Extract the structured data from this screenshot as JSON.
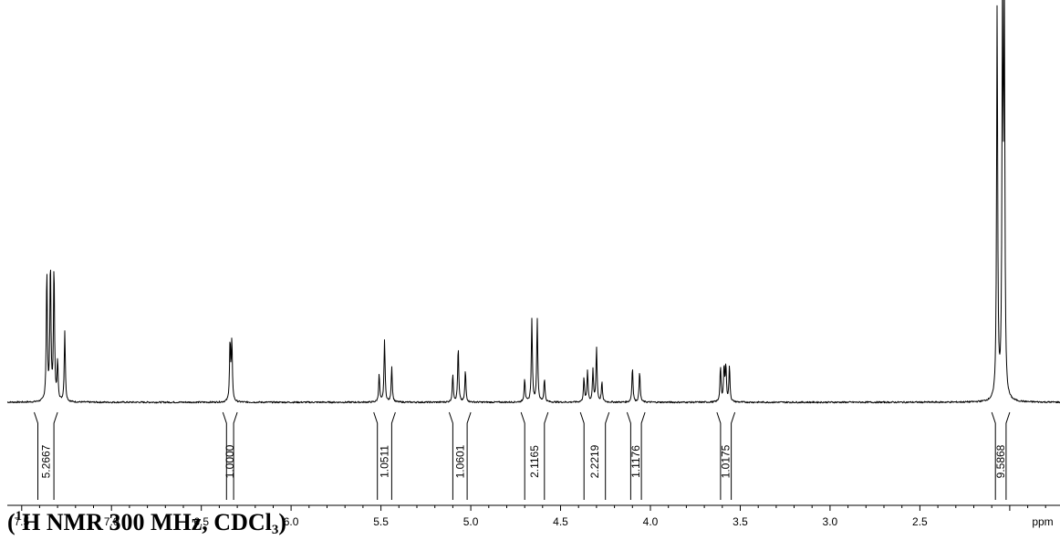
{
  "chart_data": {
    "type": "line",
    "title": "",
    "xlabel": "ppm",
    "ylabel": "",
    "x_reversed": true,
    "xlim": [
      7.58,
      1.72
    ],
    "x_ticks": [
      "7.5",
      "7.0",
      "6.5",
      "6.0",
      "5.5",
      "5.0",
      "4.5",
      "4.0",
      "3.5",
      "3.0",
      "2.5"
    ],
    "grid": false,
    "legend": "none",
    "series": [
      {
        "peaks": [
          {
            "ppm": 7.36,
            "height": 0.33
          },
          {
            "ppm": 7.34,
            "height": 0.35
          },
          {
            "ppm": 7.32,
            "height": 0.34
          },
          {
            "ppm": 7.3,
            "height": 0.1
          },
          {
            "ppm": 7.26,
            "height": 0.18
          },
          {
            "ppm": 6.34,
            "height": 0.15
          },
          {
            "ppm": 6.33,
            "height": 0.15
          },
          {
            "ppm": 5.51,
            "height": 0.07
          },
          {
            "ppm": 5.48,
            "height": 0.16
          },
          {
            "ppm": 5.44,
            "height": 0.09
          },
          {
            "ppm": 5.1,
            "height": 0.07
          },
          {
            "ppm": 5.07,
            "height": 0.14
          },
          {
            "ppm": 5.03,
            "height": 0.08
          },
          {
            "ppm": 4.7,
            "height": 0.06
          },
          {
            "ppm": 4.66,
            "height": 0.21
          },
          {
            "ppm": 4.63,
            "height": 0.21
          },
          {
            "ppm": 4.59,
            "height": 0.06
          },
          {
            "ppm": 4.37,
            "height": 0.06
          },
          {
            "ppm": 4.35,
            "height": 0.08
          },
          {
            "ppm": 4.32,
            "height": 0.08
          },
          {
            "ppm": 4.3,
            "height": 0.14
          },
          {
            "ppm": 4.27,
            "height": 0.05
          },
          {
            "ppm": 4.1,
            "height": 0.09
          },
          {
            "ppm": 4.06,
            "height": 0.08
          },
          {
            "ppm": 3.61,
            "height": 0.09
          },
          {
            "ppm": 3.59,
            "height": 0.09
          },
          {
            "ppm": 3.58,
            "height": 0.09
          },
          {
            "ppm": 3.56,
            "height": 0.09
          },
          {
            "ppm": 2.07,
            "height": 1.0
          },
          {
            "ppm": 2.04,
            "height": 1.0
          },
          {
            "ppm": 2.03,
            "height": 0.99
          }
        ]
      }
    ],
    "integrals": [
      {
        "label": "5.2667",
        "from_ppm": 7.43,
        "to_ppm": 7.3
      },
      {
        "label": "1.0000",
        "from_ppm": 6.38,
        "to_ppm": 6.3
      },
      {
        "label": "1.0511",
        "from_ppm": 5.54,
        "to_ppm": 5.42
      },
      {
        "label": "1.0601",
        "from_ppm": 5.12,
        "to_ppm": 5.0
      },
      {
        "label": "2.1165",
        "from_ppm": 4.72,
        "to_ppm": 4.57
      },
      {
        "label": "2.2219",
        "from_ppm": 4.39,
        "to_ppm": 4.23
      },
      {
        "label": "1.1176",
        "from_ppm": 4.13,
        "to_ppm": 4.03
      },
      {
        "label": "1.0175",
        "from_ppm": 3.63,
        "to_ppm": 3.53
      },
      {
        "label": "9.5868",
        "from_ppm": 2.1,
        "to_ppm": 2.0
      }
    ]
  },
  "caption": {
    "open": "(",
    "sup": "1",
    "main": "H NMR 300 MHz, CDCl",
    "sub": "3",
    "close": ")"
  }
}
